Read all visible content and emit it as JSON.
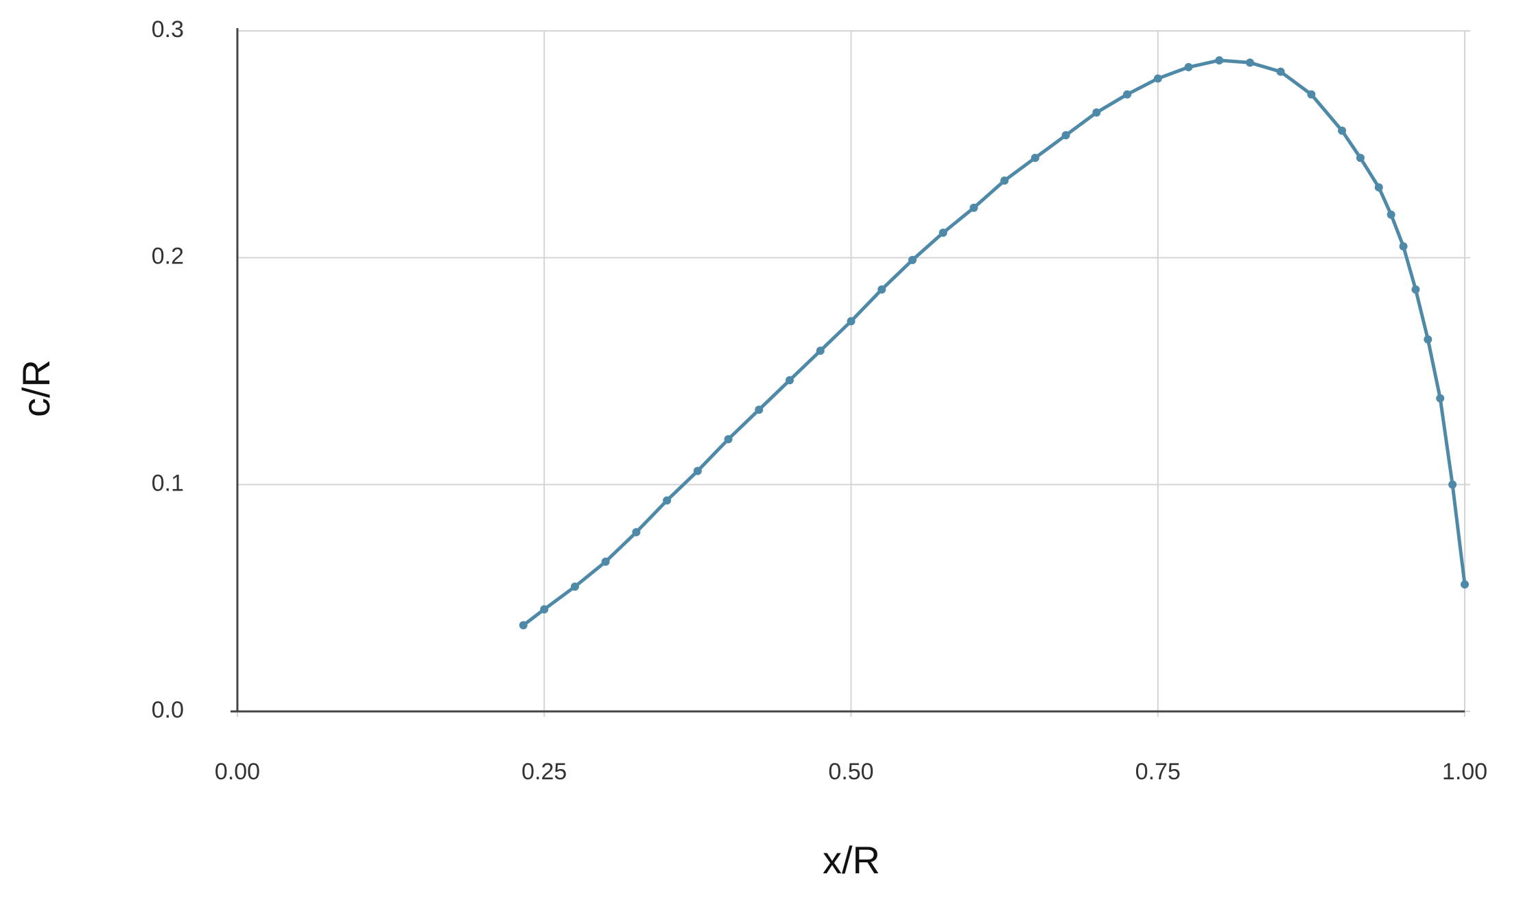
{
  "chart_data": {
    "type": "line",
    "x_label": "x/R",
    "y_label": "c/R",
    "x": [
      0.233,
      0.25,
      0.275,
      0.3,
      0.325,
      0.35,
      0.375,
      0.4,
      0.425,
      0.45,
      0.475,
      0.5,
      0.525,
      0.55,
      0.575,
      0.6,
      0.625,
      0.65,
      0.675,
      0.7,
      0.725,
      0.75,
      0.775,
      0.8,
      0.825,
      0.85,
      0.875,
      0.9,
      0.915,
      0.93,
      0.94,
      0.95,
      0.96,
      0.97,
      0.98,
      0.99,
      1.0
    ],
    "series": [
      {
        "name": "c/R",
        "color": "#4e89a8",
        "values": [
          0.038,
          0.045,
          0.055,
          0.066,
          0.079,
          0.093,
          0.106,
          0.12,
          0.133,
          0.146,
          0.159,
          0.172,
          0.186,
          0.199,
          0.211,
          0.222,
          0.234,
          0.244,
          0.254,
          0.264,
          0.272,
          0.279,
          0.284,
          0.287,
          0.286,
          0.282,
          0.272,
          0.256,
          0.244,
          0.231,
          0.219,
          0.205,
          0.186,
          0.164,
          0.138,
          0.1,
          0.056
        ]
      }
    ],
    "xlim": [
      0,
      1
    ],
    "ylim": [
      0,
      0.3
    ],
    "xticks": [
      {
        "value": 0,
        "label": "0.00"
      },
      {
        "value": 0.25,
        "label": "0.25"
      },
      {
        "value": 0.5,
        "label": "0.50"
      },
      {
        "value": 0.75,
        "label": "0.75"
      },
      {
        "value": 1,
        "label": "1.00"
      }
    ],
    "yticks": [
      {
        "value": 0,
        "label": "0.0"
      },
      0.1,
      0.2,
      0.3
    ],
    "grid": true
  }
}
